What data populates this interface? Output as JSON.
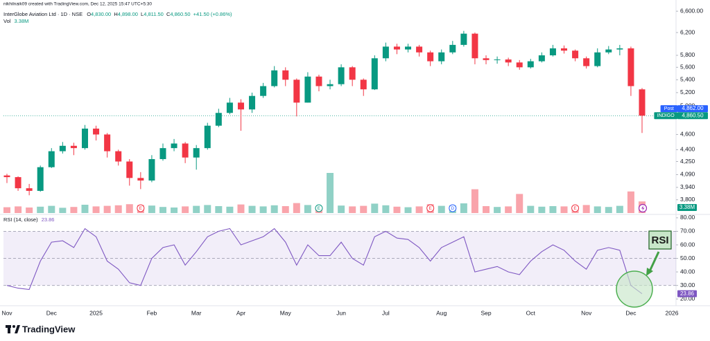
{
  "chart_data": {
    "type": "candlestick",
    "credit": "nikhilnaik09 created with TradingView.com, Dec 12, 2025 15:47 UTC+5:30",
    "title": "InterGlobe Aviation Ltd · 1D · NSE",
    "legend_values": [
      {
        "prefix": "O",
        "text": "4,830.00"
      },
      {
        "prefix": "H",
        "text": "4,898.00"
      },
      {
        "prefix": "L",
        "text": "4,811.50"
      },
      {
        "prefix": "C",
        "text": "4,860.50"
      }
    ],
    "change": "+41.50 (+0.86%)",
    "volume_title": "Vol",
    "volume_last": "3.38M",
    "up_color": "#089981",
    "down_color": "#f23645",
    "categories": [
      "Nov",
      null,
      null,
      null,
      "Dec",
      null,
      null,
      null,
      "2025",
      null,
      null,
      null,
      null,
      "Feb",
      null,
      null,
      null,
      "Mar",
      null,
      null,
      null,
      "Apr",
      null,
      null,
      null,
      "May",
      null,
      null,
      null,
      null,
      "Jun",
      null,
      null,
      null,
      "Jul",
      null,
      null,
      null,
      null,
      "Aug",
      null,
      null,
      null,
      "Sep",
      null,
      null,
      null,
      "Oct",
      null,
      null,
      null,
      null,
      "Nov",
      null,
      null,
      null,
      "Dec",
      null
    ],
    "future_label": "2026",
    "open": [
      4080,
      4060,
      3930,
      3900,
      4180,
      4380,
      4450,
      4420,
      4680,
      4600,
      4380,
      4250,
      4050,
      4020,
      4280,
      4420,
      4480,
      4300,
      4420,
      4720,
      4900,
      5050,
      4950,
      5150,
      5300,
      5550,
      5400,
      5050,
      5450,
      5300,
      5330,
      5600,
      5400,
      5250,
      5750,
      5950,
      5900,
      5950,
      5850,
      5700,
      5850,
      5980,
      6180,
      5750,
      5720,
      5730,
      5680,
      5600,
      5700,
      5800,
      5920,
      5880,
      5750,
      5620,
      5850,
      5900,
      5920,
      5250
    ],
    "high": [
      4100,
      4070,
      3980,
      4200,
      4420,
      4500,
      4490,
      4730,
      4720,
      4620,
      4400,
      4280,
      4120,
      4330,
      4480,
      4540,
      4500,
      4460,
      4760,
      4960,
      5120,
      5100,
      5200,
      5350,
      5620,
      5600,
      5420,
      5520,
      5480,
      5400,
      5650,
      5620,
      5420,
      5800,
      6020,
      6000,
      6000,
      5980,
      5880,
      5900,
      6050,
      6230,
      6200,
      5800,
      5780,
      5760,
      5720,
      5740,
      5850,
      5980,
      5970,
      5900,
      5780,
      5920,
      5960,
      5980,
      5950,
      5270
    ],
    "low": [
      3990,
      3900,
      3850,
      3890,
      4170,
      4350,
      4330,
      4400,
      4520,
      4300,
      4200,
      3960,
      3920,
      4000,
      4260,
      4380,
      4230,
      4150,
      4400,
      4700,
      4880,
      4650,
      4900,
      5120,
      5280,
      5300,
      4850,
      5050,
      5220,
      5250,
      5300,
      5300,
      5150,
      5240,
      5700,
      5820,
      5850,
      5780,
      5620,
      5650,
      5820,
      5950,
      5650,
      5650,
      5660,
      5620,
      5560,
      5580,
      5680,
      5780,
      5830,
      5700,
      5580,
      5600,
      5820,
      5800,
      5150,
      4620
    ],
    "close": [
      4060,
      3930,
      3900,
      4180,
      4380,
      4450,
      4420,
      4680,
      4600,
      4380,
      4250,
      4050,
      4020,
      4280,
      4420,
      4480,
      4300,
      4420,
      4720,
      4900,
      5050,
      4950,
      5150,
      5300,
      5550,
      5400,
      5050,
      5450,
      5300,
      5330,
      5600,
      5400,
      5250,
      5750,
      5950,
      5900,
      5950,
      5850,
      5700,
      5850,
      5980,
      6180,
      5750,
      5720,
      5730,
      5680,
      5600,
      5700,
      5800,
      5920,
      5880,
      5750,
      5620,
      5850,
      5900,
      5920,
      5300,
      4860.5
    ],
    "volume": [
      2.1,
      2.4,
      2.0,
      2.3,
      2.6,
      1.9,
      2.2,
      3.0,
      2.4,
      2.6,
      2.8,
      3.2,
      2.9,
      2.7,
      2.2,
      2.0,
      2.4,
      2.6,
      2.9,
      2.5,
      2.3,
      3.1,
      2.6,
      2.4,
      2.8,
      2.5,
      3.6,
      2.9,
      2.3,
      14.5,
      2.7,
      2.4,
      2.6,
      3.4,
      2.8,
      2.3,
      2.1,
      2.4,
      3.2,
      2.6,
      2.8,
      3.5,
      8.6,
      2.5,
      2.2,
      2.4,
      6.9,
      2.6,
      2.3,
      2.5,
      2.4,
      2.6,
      2.9,
      2.4,
      2.2,
      2.6,
      7.8,
      4.2
    ],
    "volume_ylim": [
      0,
      20
    ],
    "log_scale": true,
    "ylim": [
      3640,
      6820
    ],
    "yticks": [
      {
        "value": 3800,
        "label": "3,800"
      },
      {
        "value": 3940,
        "label": "3,940"
      },
      {
        "value": 4090,
        "label": "4,090"
      },
      {
        "value": 4250,
        "label": "4,250"
      },
      {
        "value": 4400,
        "label": "4,400"
      },
      {
        "value": 4600,
        "label": "4,600"
      },
      {
        "value": 5000,
        "label": "5,000"
      },
      {
        "value": 5200,
        "label": "5,200"
      },
      {
        "value": 5400,
        "label": "5,400"
      },
      {
        "value": 5600,
        "label": "5,600"
      },
      {
        "value": 5800,
        "label": "5,800"
      },
      {
        "value": 6200,
        "label": "6,200"
      },
      {
        "value": 6600,
        "label": "6,600.00"
      }
    ],
    "price_labels": [
      {
        "name": "Post",
        "value": 4862,
        "label": "4,862.00",
        "color": "#2962ff"
      },
      {
        "name": "INDIGO",
        "value": 4860.5,
        "label": "4,860.50",
        "color": "#089981"
      }
    ],
    "events": [
      {
        "label": "E",
        "color": "#f23645"
      },
      {
        "label": "E",
        "color": "#089981"
      },
      {
        "label": "E",
        "color": "#f23645"
      },
      {
        "label": "D",
        "color": "#2962ff"
      },
      {
        "label": "E",
        "color": "#f23645"
      }
    ],
    "rsi": {
      "title": "RSI (14, close)",
      "color": "#7e57c2",
      "values": [
        30,
        28,
        27,
        48,
        62,
        63,
        58,
        72,
        66,
        48,
        42,
        32,
        30,
        50,
        58,
        60,
        45,
        55,
        66,
        70,
        72,
        60,
        63,
        66,
        72,
        62,
        45,
        60,
        52,
        52,
        62,
        50,
        45,
        66,
        70,
        65,
        64,
        58,
        48,
        58,
        62,
        66,
        40,
        42,
        44,
        40,
        38,
        48,
        55,
        60,
        56,
        48,
        42,
        56,
        58,
        56,
        30,
        23.86
      ],
      "ylim": [
        15,
        82.5
      ],
      "yticks": [
        {
          "value": 20,
          "label": "20.00"
        },
        {
          "value": 30,
          "label": "30.00"
        },
        {
          "value": 40,
          "label": "40.00"
        },
        {
          "value": 50,
          "label": "50.00"
        },
        {
          "value": 60,
          "label": "60.00"
        },
        {
          "value": 70,
          "label": "70.00"
        },
        {
          "value": 80,
          "label": "80.00"
        }
      ],
      "band": [
        30,
        70
      ],
      "middle": 50
    },
    "annotation": "RSI",
    "brand": "TradingView"
  }
}
